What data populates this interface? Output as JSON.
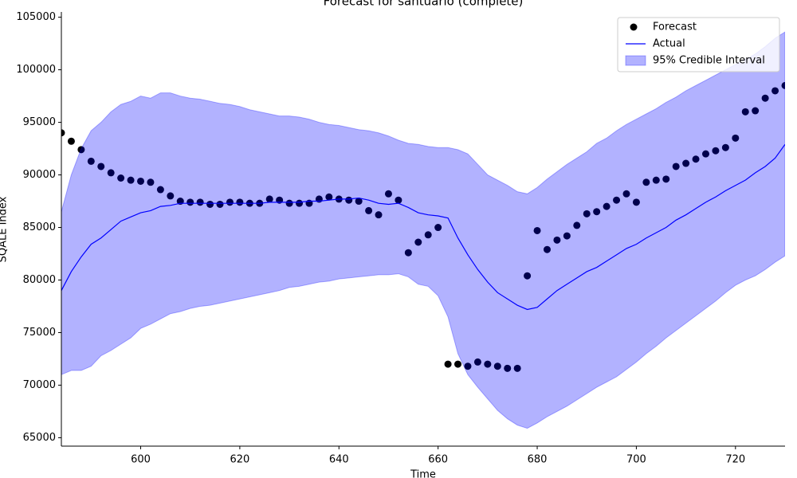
{
  "chart_data": {
    "type": "line",
    "title": "Forecast for santuario (complete)",
    "x_label": "Time",
    "y_label": "SQALE Index",
    "x": [
      584,
      586,
      588,
      590,
      592,
      594,
      596,
      598,
      600,
      602,
      604,
      606,
      608,
      610,
      612,
      614,
      616,
      618,
      620,
      622,
      624,
      626,
      628,
      630,
      632,
      634,
      636,
      638,
      640,
      642,
      644,
      646,
      648,
      650,
      652,
      654,
      656,
      658,
      660,
      662,
      664,
      666,
      668,
      670,
      672,
      674,
      676,
      678,
      680,
      682,
      684,
      686,
      688,
      690,
      692,
      694,
      696,
      698,
      700,
      702,
      704,
      706,
      708,
      710,
      712,
      714,
      716,
      718,
      720,
      722,
      724,
      726,
      728,
      730
    ],
    "series": [
      {
        "name": "Forecast",
        "color": "#000000",
        "style": "scatter",
        "values": [
          94000,
          93200,
          92400,
          91300,
          90800,
          90200,
          89700,
          89500,
          89400,
          89300,
          88600,
          88000,
          87500,
          87400,
          87400,
          87200,
          87200,
          87400,
          87400,
          87300,
          87300,
          87700,
          87600,
          87300,
          87300,
          87300,
          87700,
          87900,
          87700,
          87600,
          87500,
          86600,
          86200,
          88200,
          87600,
          82600,
          83600,
          84300,
          85000,
          72000,
          72000,
          71800,
          72200,
          72000,
          71800,
          71600,
          71600,
          80400,
          84700,
          82900,
          83800,
          84200,
          85200,
          86300,
          86500,
          87000,
          87600,
          88200,
          87400,
          89300,
          89500,
          89600,
          90800,
          91100,
          91500,
          92000,
          92300,
          92600,
          93500,
          96000,
          96100,
          97300,
          98000,
          98500
        ]
      },
      {
        "name": "Actual",
        "color": "#0000ff",
        "style": "line",
        "values": [
          79000,
          80800,
          82200,
          83400,
          84000,
          84800,
          85600,
          86000,
          86400,
          86600,
          87000,
          87100,
          87300,
          87300,
          87300,
          87300,
          87300,
          87300,
          87300,
          87300,
          87300,
          87400,
          87400,
          87400,
          87400,
          87500,
          87500,
          87600,
          87700,
          87700,
          87800,
          87600,
          87300,
          87200,
          87300,
          86900,
          86400,
          86200,
          86100,
          85900,
          84000,
          82400,
          81000,
          79800,
          78800,
          78200,
          77600,
          77200,
          77400,
          78200,
          79000,
          79600,
          80200,
          80800,
          81200,
          81800,
          82400,
          83000,
          83400,
          84000,
          84500,
          85000,
          85700,
          86200,
          86800,
          87400,
          87900,
          88500,
          89000,
          89500,
          90200,
          90800,
          91600,
          92900
        ]
      },
      {
        "name": "95% Credible Interval",
        "color": "#0000ff",
        "style": "band",
        "opacity": 0.3,
        "upper": [
          86500,
          90000,
          92500,
          94200,
          95000,
          96000,
          96700,
          97000,
          97500,
          97300,
          97800,
          97800,
          97500,
          97300,
          97200,
          97000,
          96800,
          96700,
          96500,
          96200,
          96000,
          95800,
          95600,
          95600,
          95500,
          95300,
          95000,
          94800,
          94700,
          94500,
          94300,
          94200,
          94000,
          93700,
          93300,
          93000,
          92900,
          92700,
          92600,
          92600,
          92400,
          92000,
          91000,
          90000,
          89500,
          89000,
          88400,
          88200,
          88800,
          89600,
          90300,
          91000,
          91600,
          92200,
          93000,
          93500,
          94200,
          94800,
          95300,
          95800,
          96300,
          96900,
          97400,
          98000,
          98500,
          99000,
          99500,
          100000,
          100500,
          101000,
          101500,
          102200,
          103000,
          103600
        ],
        "lower": [
          71000,
          71400,
          71400,
          71800,
          72800,
          73300,
          73900,
          74500,
          75400,
          75800,
          76300,
          76800,
          77000,
          77300,
          77500,
          77600,
          77800,
          78000,
          78200,
          78400,
          78600,
          78800,
          79000,
          79300,
          79400,
          79600,
          79800,
          79900,
          80100,
          80200,
          80300,
          80400,
          80500,
          80500,
          80600,
          80300,
          79600,
          79400,
          78500,
          76500,
          73000,
          71000,
          69800,
          68700,
          67600,
          66800,
          66200,
          65900,
          66400,
          67000,
          67500,
          68000,
          68600,
          69200,
          69800,
          70300,
          70800,
          71500,
          72200,
          73000,
          73700,
          74500,
          75200,
          75900,
          76600,
          77300,
          78000,
          78800,
          79500,
          80000,
          80400,
          81000,
          81700,
          82300
        ]
      }
    ],
    "xlim": [
      584,
      730
    ],
    "ylim": [
      64200,
      105500
    ],
    "xticks": [
      600,
      620,
      640,
      660,
      680,
      700,
      720
    ],
    "yticks": [
      65000,
      70000,
      75000,
      80000,
      85000,
      90000,
      95000,
      100000,
      105000
    ],
    "legend": "upper right",
    "grid": false
  }
}
